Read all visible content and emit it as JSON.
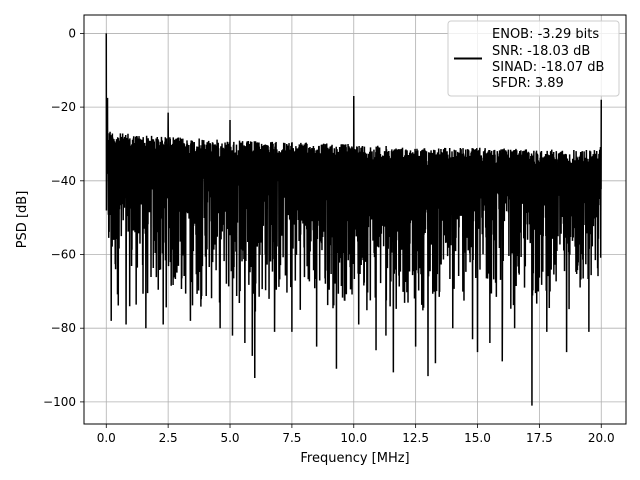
{
  "chart_data": {
    "type": "line",
    "title": "",
    "xlabel": "Frequency [MHz]",
    "ylabel": "PSD [dB]",
    "xlim": [
      -0.9,
      21.0
    ],
    "ylim": [
      -106,
      5
    ],
    "x_ticks": [
      0.0,
      2.5,
      5.0,
      7.5,
      10.0,
      12.5,
      15.0,
      17.5,
      20.0
    ],
    "x_tick_labels": [
      "0.0",
      "2.5",
      "5.0",
      "7.5",
      "10.0",
      "12.5",
      "15.0",
      "17.5",
      "20.0"
    ],
    "y_ticks": [
      0,
      -20,
      -40,
      -60,
      -80,
      -100
    ],
    "y_tick_labels": [
      "0",
      "−20",
      "−40",
      "−60",
      "−80",
      "−100"
    ],
    "grid": true,
    "legend_position": "upper right",
    "line_color": "#000000",
    "series": [
      {
        "name": "ENOB: -3.29 bits\nSNR: -18.03 dB\nSINAD: -18.07 dB\nSFDR: 3.89",
        "legend_lines": [
          "ENOB: -3.29 bits",
          "SNR: -18.03 dB",
          "SINAD: -18.07 dB",
          "SFDR: 3.89"
        ],
        "noise_floor_envelope": {
          "x": [
            0.0,
            0.1,
            0.5,
            2.5,
            5.0,
            7.5,
            10.0,
            12.5,
            15.0,
            17.5,
            19.9,
            20.0
          ],
          "upper": [
            -25,
            -26,
            -27,
            -28,
            -29,
            -29.5,
            -30,
            -31,
            -31,
            -31.5,
            -31.5,
            -30
          ],
          "lower": [
            -65,
            -70,
            -76,
            -76,
            -76,
            -76,
            -76,
            -76,
            -76,
            -76,
            -76,
            -70
          ]
        },
        "peaks": [
          {
            "x": 0.0,
            "y": 0.0
          },
          {
            "x": 0.05,
            "y": -17.5
          },
          {
            "x": 2.5,
            "y": -21.5
          },
          {
            "x": 5.0,
            "y": -23.5
          },
          {
            "x": 10.0,
            "y": -17.0
          },
          {
            "x": 20.0,
            "y": -18.0
          }
        ],
        "dips": [
          {
            "x": 0.2,
            "y": -78
          },
          {
            "x": 0.8,
            "y": -79
          },
          {
            "x": 1.6,
            "y": -80
          },
          {
            "x": 2.3,
            "y": -79
          },
          {
            "x": 3.4,
            "y": -78
          },
          {
            "x": 4.6,
            "y": -80
          },
          {
            "x": 5.1,
            "y": -82
          },
          {
            "x": 5.6,
            "y": -84
          },
          {
            "x": 5.9,
            "y": -87.5
          },
          {
            "x": 6.0,
            "y": -93.5
          },
          {
            "x": 6.8,
            "y": -81
          },
          {
            "x": 7.5,
            "y": -81
          },
          {
            "x": 8.5,
            "y": -85
          },
          {
            "x": 9.3,
            "y": -91
          },
          {
            "x": 10.2,
            "y": -79
          },
          {
            "x": 10.9,
            "y": -86
          },
          {
            "x": 11.3,
            "y": -82
          },
          {
            "x": 11.6,
            "y": -92
          },
          {
            "x": 12.5,
            "y": -85
          },
          {
            "x": 13.0,
            "y": -93
          },
          {
            "x": 13.3,
            "y": -89.5
          },
          {
            "x": 14.0,
            "y": -80
          },
          {
            "x": 14.8,
            "y": -83
          },
          {
            "x": 15.0,
            "y": -86.5
          },
          {
            "x": 15.5,
            "y": -84
          },
          {
            "x": 16.0,
            "y": -89
          },
          {
            "x": 16.5,
            "y": -80
          },
          {
            "x": 17.2,
            "y": -101
          },
          {
            "x": 17.8,
            "y": -81
          },
          {
            "x": 18.6,
            "y": -86.5
          },
          {
            "x": 19.5,
            "y": -81
          }
        ]
      }
    ]
  }
}
